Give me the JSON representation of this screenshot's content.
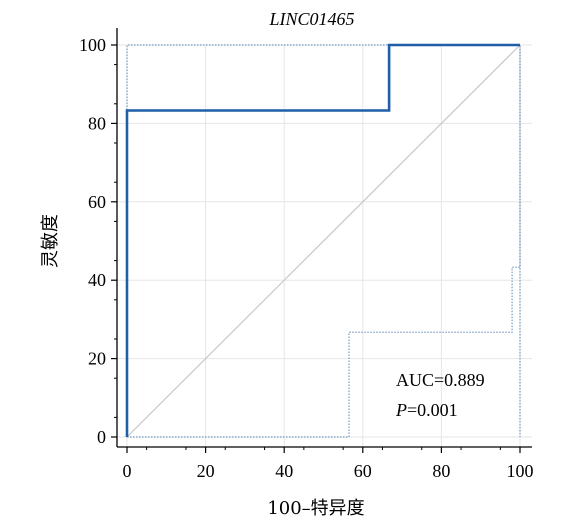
{
  "chart_data": {
    "type": "line",
    "title": "LINC01465",
    "xlabel": "100–特异度",
    "ylabel": "灵敏度",
    "xlim": [
      0,
      100
    ],
    "ylim": [
      0,
      100
    ],
    "xticks": [
      0,
      20,
      40,
      60,
      80,
      100
    ],
    "yticks": [
      0,
      20,
      40,
      60,
      80,
      100
    ],
    "grid": true,
    "series": [
      {
        "style": "solid",
        "color": "#1f5fa8",
        "x": [
          0,
          0,
          0,
          66.7,
          66.7,
          100
        ],
        "y": [
          0,
          66.7,
          83.3,
          83.3,
          100,
          100
        ]
      },
      {
        "style": "dotted",
        "color": "#8aa8cc",
        "x": [
          0,
          0,
          100,
          100
        ],
        "y": [
          0,
          100,
          100,
          0
        ]
      },
      {
        "style": "dotted",
        "color": "#8aa8cc",
        "x": [
          0,
          56.5,
          56.5,
          98,
          98,
          100,
          100
        ],
        "y": [
          0,
          0,
          26.7,
          26.7,
          43.3,
          43.3,
          100
        ]
      },
      {
        "style": "reference",
        "color": "#c8c8c8",
        "x": [
          0,
          100
        ],
        "y": [
          0,
          100
        ]
      }
    ],
    "annotations": [
      {
        "text": "AUC=0.889"
      },
      {
        "text_prefix": "P",
        "text_suffix": "=0.001"
      }
    ]
  }
}
